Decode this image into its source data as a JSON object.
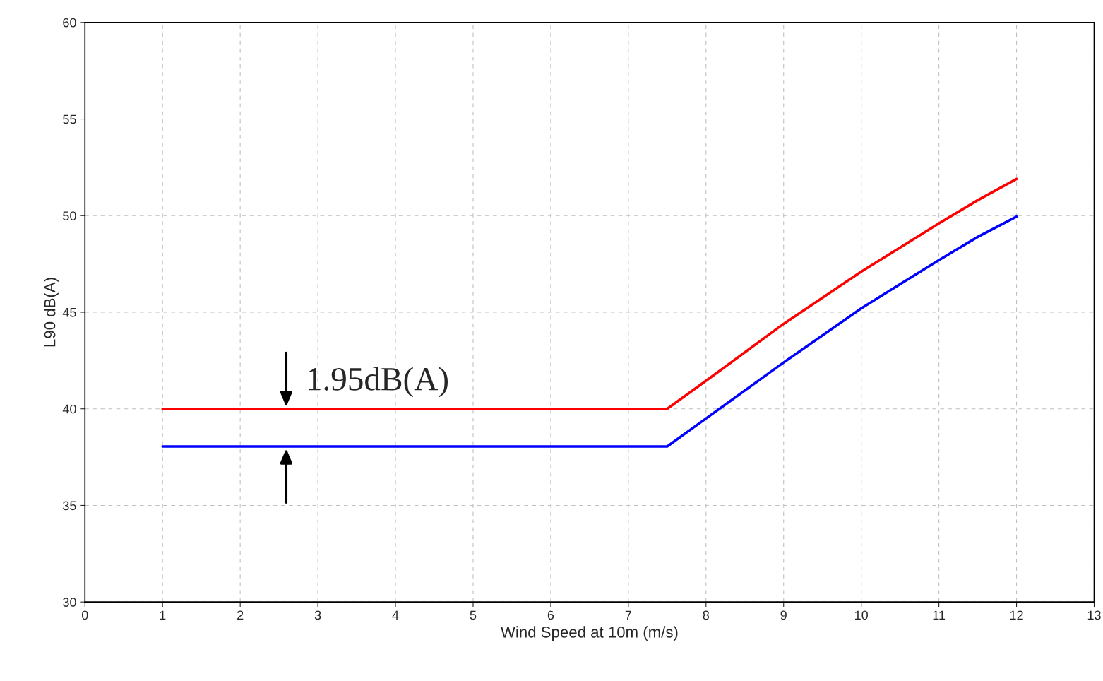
{
  "chart_data": {
    "type": "line",
    "xlabel": "Wind Speed at 10m (m/s)",
    "ylabel": "L90 dB(A)",
    "series": [
      {
        "color": "#ff0000",
        "x": [
          1,
          7.5,
          8,
          9,
          10,
          11,
          11.5,
          12
        ],
        "values": [
          40,
          40,
          41.45,
          44.4,
          47.1,
          49.6,
          50.8,
          51.9
        ]
      },
      {
        "color": "#0000ff",
        "x": [
          1,
          7.5,
          8,
          9,
          10,
          11,
          11.5,
          12
        ],
        "values": [
          38.05,
          38.05,
          39.5,
          42.4,
          45.2,
          47.7,
          48.9,
          49.95
        ]
      }
    ],
    "xlim": [
      0,
      13
    ],
    "xticks": [
      0,
      1,
      2,
      3,
      4,
      5,
      6,
      7,
      8,
      9,
      10,
      11,
      12,
      13
    ],
    "ylim": [
      30,
      60
    ],
    "yticks": [
      30,
      35,
      40,
      45,
      50,
      55,
      60
    ],
    "grid": true,
    "marker": "none",
    "line_style": "solid",
    "legend": false,
    "annotations": [
      "1.95dB(A)"
    ]
  }
}
